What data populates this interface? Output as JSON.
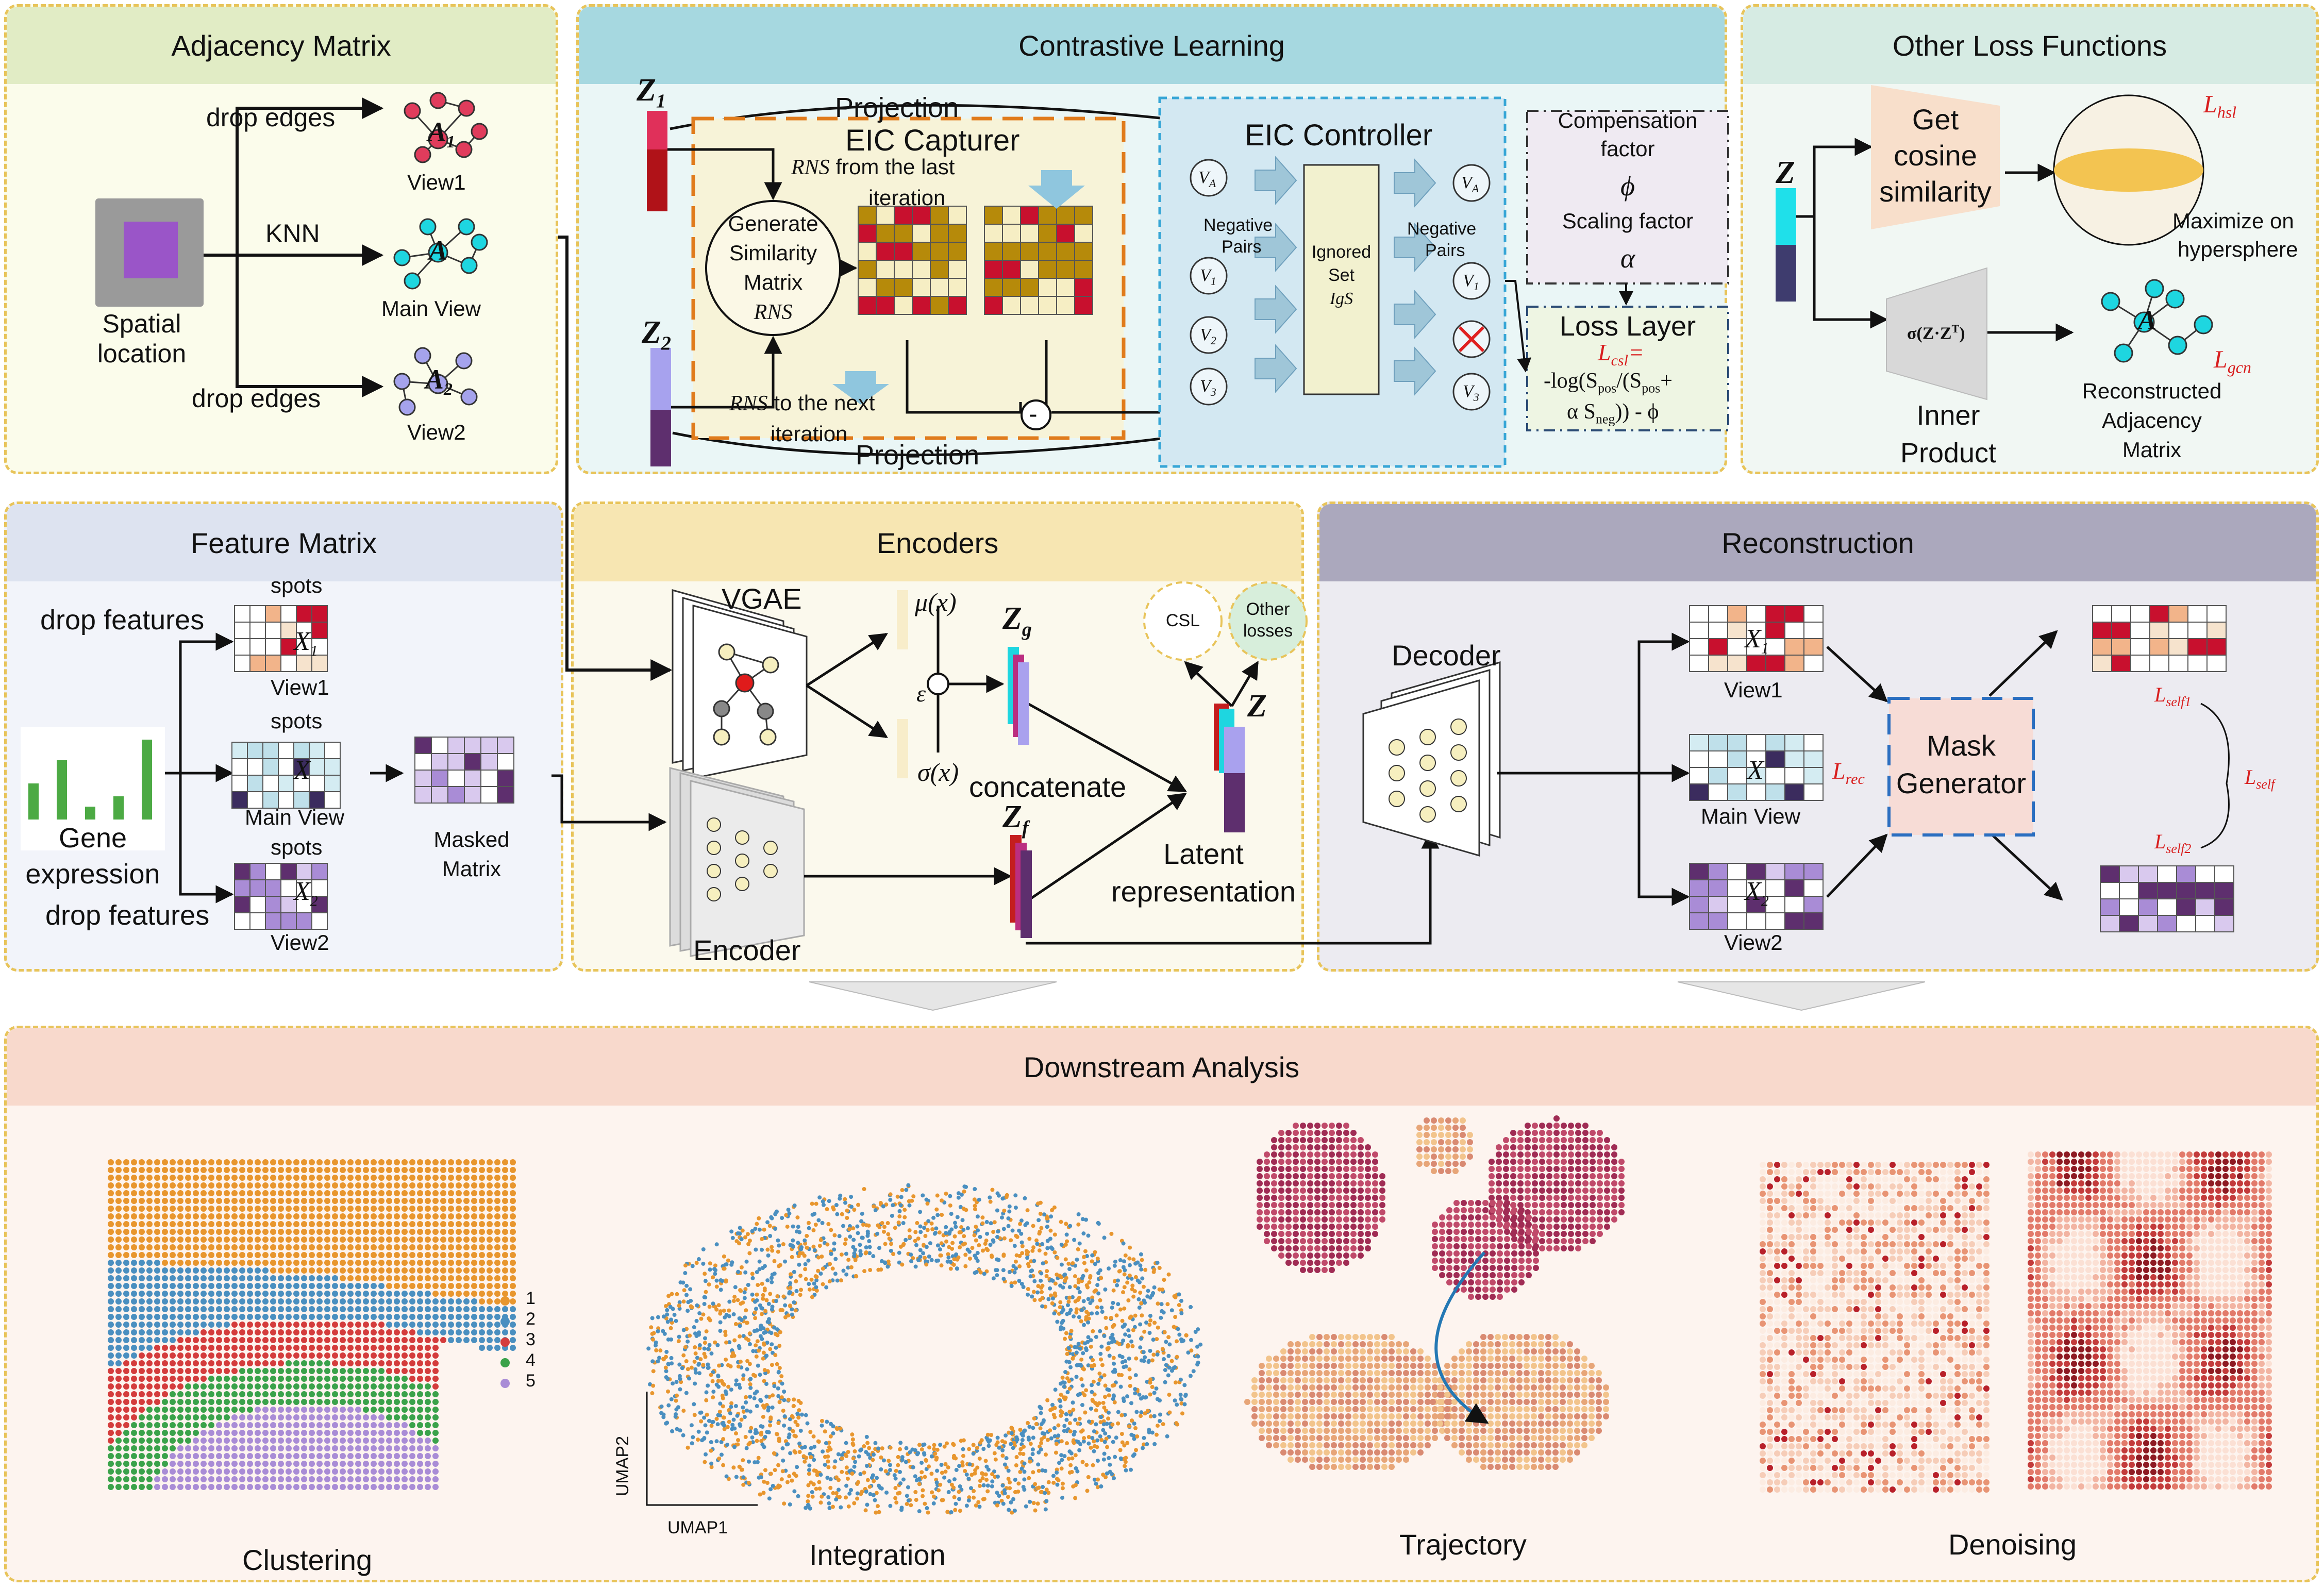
{
  "panels": {
    "adjacency": {
      "title": "Adjacency Matrix",
      "spatial": "Spatial location",
      "drop1": "drop edges",
      "drop2": "drop edges",
      "knn": "KNN",
      "view1": "View1",
      "main_view": "Main View",
      "view2": "View2",
      "a1": "A",
      "a1_sub": "1",
      "a": "A",
      "a2": "A",
      "a2_sub": "2"
    },
    "contrastive": {
      "title": "Contrastive Learning",
      "z1": "Z",
      "z1_sub": "1",
      "z2": "Z",
      "z2_sub": "2",
      "projection_top": "Projection",
      "projection_bottom": "Projection",
      "eic_capturer": "EIC Capturer",
      "rns_from": "from the last",
      "rns": "RNS",
      "iteration": "iteration",
      "gen_sim_1": "Generate",
      "gen_sim_2": "Similarity",
      "gen_sim_3": "Matrix",
      "gen_sim_rns": "RNS",
      "rns_next": "to the next",
      "iteration2": "iteration",
      "minus": "-",
      "eic_controller": "EIC Controller",
      "neg_pairs_1": "Negative",
      "neg_pairs_2": "Pairs",
      "neg_pairs_3": "Negative",
      "neg_pairs_4": "Pairs",
      "ignored_1": "Ignored",
      "ignored_2": "Set",
      "igs": "IgS",
      "va": "V",
      "va_sub": "A",
      "v1": "V",
      "v1_sub": "1",
      "v2": "V",
      "v2_sub": "2",
      "v3": "V",
      "v3_sub": "3",
      "comp_factor_1": "Compensation",
      "comp_factor_2": "factor",
      "phi": "ϕ",
      "scaling_factor": "Scaling factor",
      "alpha": "α",
      "loss_layer": "Loss Layer",
      "lcsl": "L",
      "lcsl_sub": "csl",
      "loss_eq_1": "-log(S",
      "loss_eq_1b": "pos",
      "loss_eq_1c": "/(S",
      "loss_eq_1d": "pos",
      "loss_eq_1e": "+",
      "loss_eq_2": "α S",
      "loss_eq_2b": "neg",
      "loss_eq_2c": ")) - ϕ"
    },
    "other_loss": {
      "title": "Other Loss Functions",
      "z": "Z",
      "get_1": "Get",
      "get_2": "cosine",
      "get_3": "similarity",
      "lhsl": "L",
      "lhsl_sub": "hsl",
      "maximize_1": "Maximize on",
      "maximize_2": "hypersphere",
      "sigma": "σ(Z·Z",
      "sigma_sup": "T",
      "sigma_end": ")",
      "inner_1": "Inner",
      "inner_2": "Product",
      "recon_1": "Reconstructed",
      "recon_2": "Adjacency",
      "recon_3": "Matrix",
      "lgcn": "L",
      "lgcn_sub": "gcn",
      "a_hat": "A"
    },
    "feature": {
      "title": "Feature Matrix",
      "drop1": "drop features",
      "drop2": "drop features",
      "spots1": "spots",
      "spots2": "spots",
      "spots3": "spots",
      "x1": "X",
      "x1_sub": "1",
      "x": "X",
      "x2": "X",
      "x2_sub": "2",
      "view1": "View1",
      "main_view": "Main View",
      "view2": "View2",
      "gene_1": "Gene",
      "gene_2": "expression",
      "masked_1": "Masked",
      "masked_2": "Matrix"
    },
    "encoders": {
      "title": "Encoders",
      "vgae": "VGAE",
      "mu": "μ(x)",
      "sigma": "σ(x)",
      "eps": "ε",
      "zg": "Z",
      "zg_sub": "g",
      "zf": "Z",
      "zf_sub": "f",
      "concatenate": "concatenate",
      "encoder": "Encoder",
      "csl": "CSL",
      "other_1": "Other",
      "other_2": "losses",
      "z": "Z",
      "latent_1": "Latent",
      "latent_2": "representation"
    },
    "reconstruction": {
      "title": "Reconstruction",
      "decoder": "Decoder",
      "x1": "X",
      "x1_sub": "1",
      "x": "X",
      "x2": "X",
      "x2_sub": "2",
      "view1": "View1",
      "main_view": "Main View",
      "view2": "View2",
      "lrec": "L",
      "lrec_sub": "rec",
      "mask_1": "Mask",
      "mask_2": "Generator",
      "lself1": "L",
      "lself1_sub": "self1",
      "lself": "L",
      "lself_sub": "self",
      "lself2": "L",
      "lself2_sub": "self2"
    },
    "downstream": {
      "title": "Downstream Analysis",
      "clustering": "Clustering",
      "integration": "Integration",
      "trajectory": "Trajectory",
      "denoising": "Denoising",
      "umap1": "UMAP1",
      "umap2": "UMAP2",
      "legend": [
        "1",
        "2",
        "3",
        "4",
        "5"
      ]
    }
  },
  "colors": {
    "orange": "#e8962e",
    "blue": "#4a8fc0",
    "green": "#3aa24a",
    "red": "#d43c3c",
    "purple": "#a98cd6",
    "cyan": "#1ed6e0",
    "magenta": "#c81e50"
  }
}
